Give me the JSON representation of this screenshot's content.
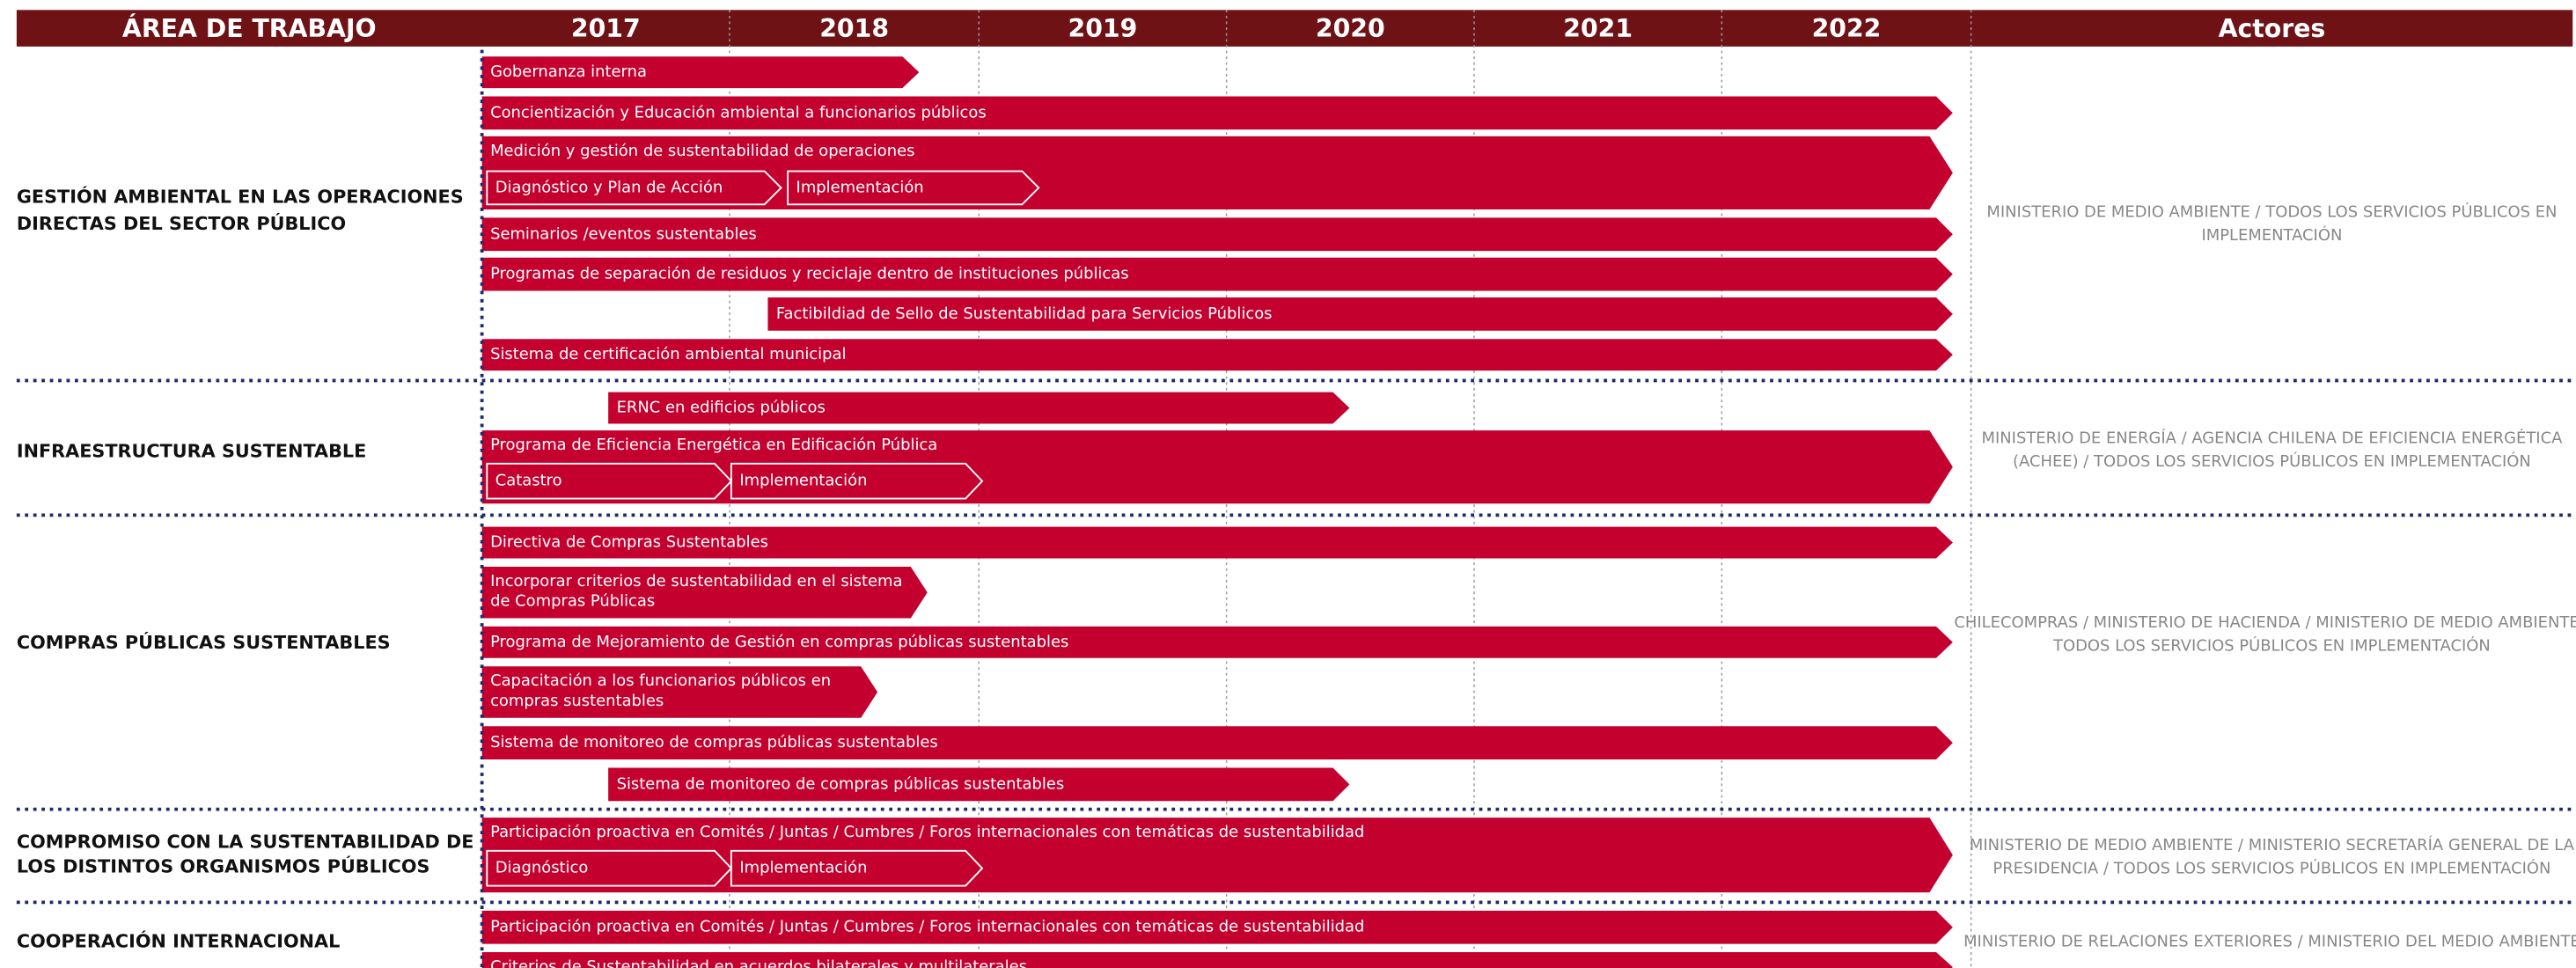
{
  "header": {
    "area": "ÁREA DE TRABAJO",
    "years": [
      "2017",
      "2018",
      "2019",
      "2020",
      "2021",
      "2022"
    ],
    "actors": "Actores"
  },
  "sections": [
    {
      "label": [
        "GESTIÓN AMBIENTAL EN LAS OPERACIONES",
        "DIRECTAS DEL SECTOR PÚBLICO"
      ],
      "actors": [
        "MINISTERIO DE MEDIO AMBIENTE / TODOS LOS SERVICIOS PÚBLICOS EN",
        "IMPLEMENTACIÓN"
      ],
      "bars": [
        {
          "label": "Gobernanza interna"
        },
        {
          "label": "Concientización y Educación ambiental a funcionarios públicos"
        },
        {
          "label": "Medición y gestión de sustentabilidad de operaciones",
          "steps": [
            "Diagnóstico y Plan de Acción",
            "Implementación"
          ]
        },
        {
          "label": "Seminarios /eventos sustentables"
        },
        {
          "label": "Programas de separación de residuos y reciclaje dentro de instituciones públicas"
        },
        {
          "label": "Factibildiad de Sello de Sustentabilidad para Servicios Públicos"
        },
        {
          "label": "Sistema de certificación ambiental municipal"
        }
      ]
    },
    {
      "label": [
        "INFRAESTRUCTURA SUSTENTABLE"
      ],
      "actors": [
        "MINISTERIO DE ENERGÍA / AGENCIA CHILENA DE EFICIENCIA ENERGÉTICA",
        "(ACHEE) / TODOS LOS SERVICIOS PÚBLICOS EN IMPLEMENTACIÓN"
      ],
      "bars": [
        {
          "label": "ERNC en edificios públicos"
        },
        {
          "label": "Programa de Eficiencia Energética en Edificación Pública",
          "steps": [
            "Catastro",
            "Implementación"
          ]
        }
      ]
    },
    {
      "label": [
        "COMPRAS PÚBLICAS SUSTENTABLES"
      ],
      "actors": [
        "CHILECOMPRAS / MINISTERIO DE HACIENDA / MINISTERIO DE MEDIO AMBIENTE /",
        "TODOS LOS SERVICIOS PÚBLICOS EN IMPLEMENTACIÓN"
      ],
      "bars": [
        {
          "label": "Directiva de Compras Sustentables"
        },
        {
          "label": [
            "Incorporar criterios de sustentabilidad en el sistema",
            "de Compras Públicas"
          ]
        },
        {
          "label": "Programa de Mejoramiento de Gestión en compras públicas sustentables"
        },
        {
          "label": [
            "Capacitación a los funcionarios públicos en",
            "compras sustentables"
          ]
        },
        {
          "label": "Sistema de monitoreo de compras públicas sustentables"
        },
        {
          "label": "Sistema de monitoreo de compras públicas sustentables"
        }
      ]
    },
    {
      "label": [
        "COMPROMISO CON LA SUSTENTABILIDAD DE",
        "LOS DISTINTOS ORGANISMOS PÚBLICOS"
      ],
      "actors": [
        "MINISTERIO DE MEDIO AMBIENTE / MINISTERIO SECRETARÍA GENERAL DE LA",
        "PRESIDENCIA / TODOS LOS SERVICIOS PÚBLICOS EN IMPLEMENTACIÓN"
      ],
      "bars": [
        {
          "label": "Participación proactiva en Comités / Juntas / Cumbres / Foros internacionales con temáticas de sustentabilidad",
          "steps": [
            "Diagnóstico",
            "Implementación"
          ]
        }
      ]
    },
    {
      "label": [
        "COOPERACIÓN INTERNACIONAL"
      ],
      "actors": [
        "MINISTERIO DE RELACIONES EXTERIORES / MINISTERIO DEL MEDIO AMBIENTE"
      ],
      "bars": [
        {
          "label": "Participación  proactiva en Comités / Juntas / Cumbres / Foros internacionales con temáticas de sustentabilidad"
        },
        {
          "label": "Criterios de Sustentabilidad en acuerdos bilaterales y multilaterales"
        }
      ]
    }
  ]
}
